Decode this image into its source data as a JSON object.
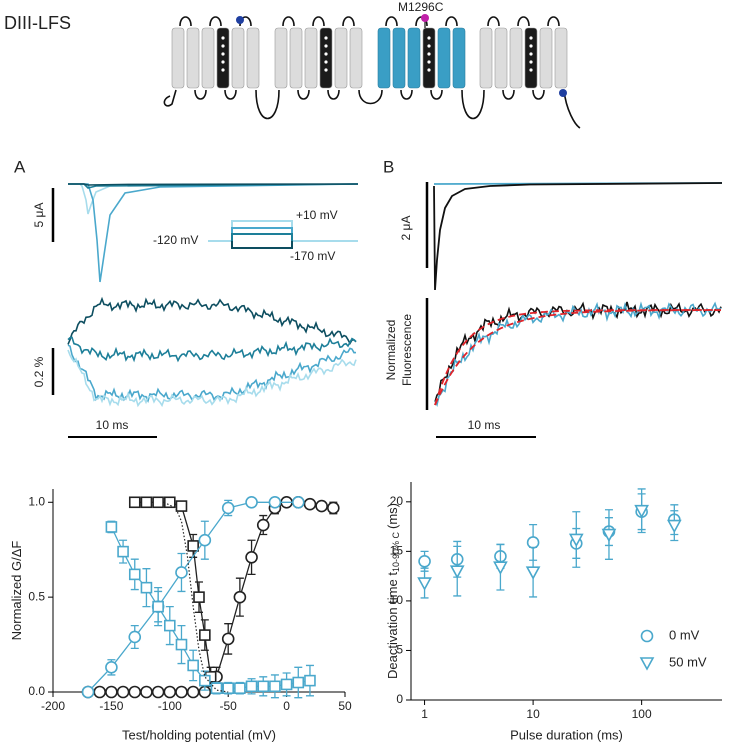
{
  "figure": {
    "construct": "DIII-LFS",
    "mutation": "M1296C",
    "panel_a": "A",
    "panel_b": "B",
    "scale_a_current": "5 μA",
    "scale_a_fluor": "0.2 %",
    "scale_a_time": "10 ms",
    "protocol_high": "+10 mV",
    "protocol_hold": "-120 mV",
    "protocol_low": "-170 mV",
    "scale_b_current": "2 μA",
    "fluor_label_1": "Normalized",
    "fluor_label_2": "Fluorescence",
    "scale_b_time": "10 ms"
  },
  "chart_data": [
    {
      "type": "scatter",
      "xlabel": "Test/holding potential (mV)",
      "ylabel": "Normalized G/ΔF",
      "xlim": [
        -200,
        50
      ],
      "xticks": [
        -200,
        -150,
        -100,
        -50,
        0,
        50
      ],
      "ylim": [
        0,
        1.07
      ],
      "yticks": [
        {
          "value": 0,
          "label": "0.0"
        },
        {
          "value": 0.5,
          "label": "0.5"
        },
        {
          "value": 1,
          "label": "1.0"
        }
      ],
      "series": [
        {
          "color": "#222222",
          "marker": "circle",
          "line": "solid",
          "x": [
            -170,
            -160,
            -150,
            -140,
            -130,
            -120,
            -110,
            -100,
            -90,
            -80,
            -70,
            -60,
            -50,
            -40,
            -30,
            -20,
            -10,
            0,
            10,
            20,
            30,
            40
          ],
          "values": [
            0,
            0,
            0,
            0,
            0,
            0,
            0,
            0,
            0,
            0,
            0,
            0.08,
            0.28,
            0.5,
            0.71,
            0.88,
            0.97,
            1.0,
            1.0,
            0.99,
            0.98,
            0.97
          ],
          "errors": [
            0.01,
            0.01,
            0.01,
            0.01,
            0.01,
            0.01,
            0.01,
            0.01,
            0.01,
            0.01,
            0.01,
            0.05,
            0.08,
            0.1,
            0.09,
            0.05,
            0.03,
            0.02,
            0.02,
            0.02,
            0.02,
            0.03
          ]
        },
        {
          "color": "#222222",
          "marker": "square",
          "line": "solid",
          "x": [
            -130,
            -120,
            -110,
            -100,
            -90,
            -80,
            -75,
            -70,
            -65,
            -60
          ],
          "values": [
            1.0,
            1.0,
            1.0,
            1.0,
            0.98,
            0.77,
            0.5,
            0.3,
            0.08,
            0.02
          ],
          "errors": [
            0.01,
            0.01,
            0.01,
            0.01,
            0.02,
            0.06,
            0.08,
            0.08,
            0.05,
            0.02
          ]
        },
        {
          "color": "#4aa8cc",
          "marker": "circle",
          "line": "solid",
          "x": [
            -170,
            -150,
            -130,
            -110,
            -90,
            -70,
            -50,
            -30,
            -10,
            10
          ],
          "values": [
            0,
            0.13,
            0.29,
            0.45,
            0.63,
            0.8,
            0.97,
            1.0,
            1.0,
            1.0
          ],
          "errors": [
            0.01,
            0.04,
            0.06,
            0.08,
            0.1,
            0.1,
            0.04,
            0.02,
            0.02,
            0.02
          ]
        },
        {
          "color": "#4aa8cc",
          "marker": "square",
          "line": "solid",
          "x": [
            -150,
            -140,
            -130,
            -120,
            -110,
            -100,
            -90,
            -80,
            -70,
            -60,
            -50,
            -40,
            -30,
            -20,
            -10,
            0,
            10,
            20
          ],
          "values": [
            0.87,
            0.74,
            0.62,
            0.55,
            0.45,
            0.35,
            0.25,
            0.14,
            0.06,
            0.02,
            0.02,
            0.02,
            0.03,
            0.03,
            0.03,
            0.04,
            0.05,
            0.06
          ],
          "errors": [
            0.03,
            0.06,
            0.08,
            0.1,
            0.1,
            0.1,
            0.1,
            0.08,
            0.05,
            0.03,
            0.03,
            0.03,
            0.04,
            0.05,
            0.06,
            0.06,
            0.08,
            0.08
          ]
        },
        {
          "color": "#222222",
          "marker": "none",
          "line": "dotted",
          "x": [
            -105,
            -95,
            -90,
            -85,
            -80,
            -75,
            -70,
            -60,
            -50
          ],
          "values": [
            1.0,
            0.97,
            0.9,
            0.72,
            0.45,
            0.22,
            0.08,
            0.01,
            0
          ]
        }
      ]
    },
    {
      "type": "scatter",
      "xlabel": "Pulse duration (ms)",
      "ylabel": "Deactivation time t",
      "ylabel_sub": "10-90% C",
      "ylabel_unit": "(ms)",
      "log_x": true,
      "xlim": [
        0.75,
        550
      ],
      "xticks": [
        1,
        10,
        100
      ],
      "ylim": [
        0,
        22
      ],
      "yticks": [
        0,
        5,
        10,
        15,
        20
      ],
      "legend": "lower right",
      "series": [
        {
          "name": "0 mV",
          "color": "#4aa8cc",
          "marker": "circle",
          "x": [
            1,
            2,
            5,
            10,
            25,
            50,
            100,
            200
          ],
          "values": [
            14,
            14.2,
            14.5,
            15.9,
            15.8,
            17,
            19,
            18.2
          ],
          "errors": [
            1,
            1.8,
            1.2,
            1.8,
            1.5,
            1.4,
            1.8,
            1.5
          ]
        },
        {
          "name": "50 mV",
          "color": "#4aa8cc",
          "marker": "triangle",
          "x": [
            1,
            2,
            5,
            10,
            25,
            50,
            100,
            200
          ],
          "values": [
            11.8,
            13,
            13.4,
            12.9,
            16.2,
            16.7,
            19.1,
            17.6
          ],
          "errors": [
            1.5,
            2.5,
            2.3,
            2.5,
            2.8,
            2.5,
            2.2,
            1.5
          ]
        }
      ]
    }
  ]
}
